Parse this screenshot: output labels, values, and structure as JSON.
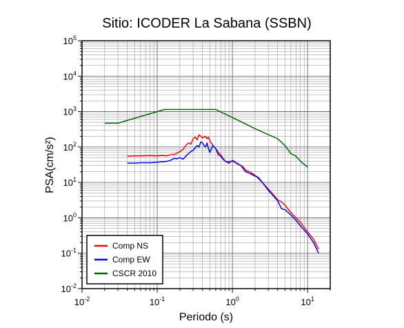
{
  "chart_data": {
    "type": "line",
    "title": "Sitio: ICODER La Sabana (SSBN)",
    "xlabel": "Periodo (s)",
    "ylabel": "PSA(cm/s²)",
    "x_scale": "log",
    "y_scale": "log",
    "xlim": [
      0.01,
      20
    ],
    "ylim": [
      0.01,
      100000
    ],
    "grid": true,
    "legend_position": "bottom-left",
    "x_ticks": [
      {
        "value": 0.01,
        "base": "10",
        "exp": "-2"
      },
      {
        "value": 0.1,
        "base": "10",
        "exp": "-1"
      },
      {
        "value": 1,
        "base": "10",
        "exp": "0"
      },
      {
        "value": 10,
        "base": "10",
        "exp": "1"
      }
    ],
    "y_ticks": [
      {
        "value": 0.01,
        "base": "10",
        "exp": "-2"
      },
      {
        "value": 0.1,
        "base": "10",
        "exp": "-1"
      },
      {
        "value": 1,
        "base": "10",
        "exp": "0"
      },
      {
        "value": 10,
        "base": "10",
        "exp": "1"
      },
      {
        "value": 100,
        "base": "10",
        "exp": "2"
      },
      {
        "value": 1000,
        "base": "10",
        "exp": "3"
      },
      {
        "value": 10000,
        "base": "10",
        "exp": "4"
      },
      {
        "value": 100000,
        "base": "10",
        "exp": "5"
      }
    ],
    "series": [
      {
        "name": "Comp NS",
        "color": "#ff0000",
        "x": [
          0.04,
          0.05,
          0.06,
          0.08,
          0.1,
          0.11,
          0.12,
          0.13,
          0.14,
          0.15,
          0.16,
          0.17,
          0.18,
          0.2,
          0.22,
          0.24,
          0.26,
          0.28,
          0.3,
          0.32,
          0.34,
          0.36,
          0.38,
          0.4,
          0.42,
          0.44,
          0.46,
          0.48,
          0.5,
          0.55,
          0.6,
          0.65,
          0.7,
          0.75,
          0.8,
          0.9,
          1.0,
          1.1,
          1.2,
          1.3,
          1.4,
          1.5,
          1.7,
          2.0,
          2.2,
          2.5,
          3.0,
          3.5,
          4.0,
          4.5,
          5.0,
          6.0,
          7.0,
          8.0,
          10.0,
          12.0,
          14.0
        ],
        "y": [
          55,
          56,
          56,
          57,
          56,
          57,
          58,
          56,
          58,
          60,
          62,
          60,
          66,
          74,
          85,
          110,
          130,
          120,
          170,
          190,
          160,
          220,
          200,
          180,
          190,
          200,
          170,
          190,
          150,
          110,
          90,
          70,
          60,
          48,
          40,
          38,
          40,
          36,
          32,
          30,
          27,
          22,
          20,
          16,
          13,
          10,
          6.5,
          4.5,
          3.2,
          2.8,
          2.3,
          1.4,
          1.0,
          0.75,
          0.4,
          0.25,
          0.13
        ]
      },
      {
        "name": "Comp EW",
        "color": "#0000ff",
        "x": [
          0.04,
          0.05,
          0.06,
          0.08,
          0.1,
          0.11,
          0.12,
          0.13,
          0.14,
          0.15,
          0.16,
          0.17,
          0.18,
          0.2,
          0.22,
          0.24,
          0.26,
          0.28,
          0.3,
          0.32,
          0.34,
          0.36,
          0.38,
          0.4,
          0.42,
          0.44,
          0.46,
          0.48,
          0.5,
          0.55,
          0.6,
          0.65,
          0.7,
          0.75,
          0.8,
          0.9,
          1.0,
          1.1,
          1.2,
          1.3,
          1.4,
          1.5,
          1.7,
          2.0,
          2.2,
          2.5,
          3.0,
          3.5,
          4.0,
          4.5,
          5.0,
          6.0,
          7.0,
          8.0,
          10.0,
          12.0,
          14.0
        ],
        "y": [
          35,
          35,
          36,
          36,
          37,
          38,
          38,
          39,
          40,
          42,
          45,
          48,
          46,
          50,
          45,
          55,
          65,
          75,
          80,
          95,
          110,
          100,
          140,
          130,
          110,
          100,
          130,
          90,
          70,
          110,
          90,
          60,
          55,
          45,
          40,
          35,
          42,
          37,
          33,
          30,
          24,
          20,
          18,
          15,
          14,
          10,
          6,
          4.2,
          3.0,
          1.8,
          1.7,
          1.2,
          0.85,
          0.6,
          0.35,
          0.2,
          0.1
        ]
      },
      {
        "name": "CSCR 2010",
        "color": "#006600",
        "x": [
          0.02,
          0.03,
          0.125,
          0.6,
          1.0,
          2.0,
          4.0,
          5.0,
          6.0,
          7.0,
          8.0,
          10.0
        ],
        "y": [
          470,
          470,
          1150,
          1150,
          680,
          330,
          170,
          110,
          65,
          55,
          40,
          27
        ]
      }
    ]
  }
}
